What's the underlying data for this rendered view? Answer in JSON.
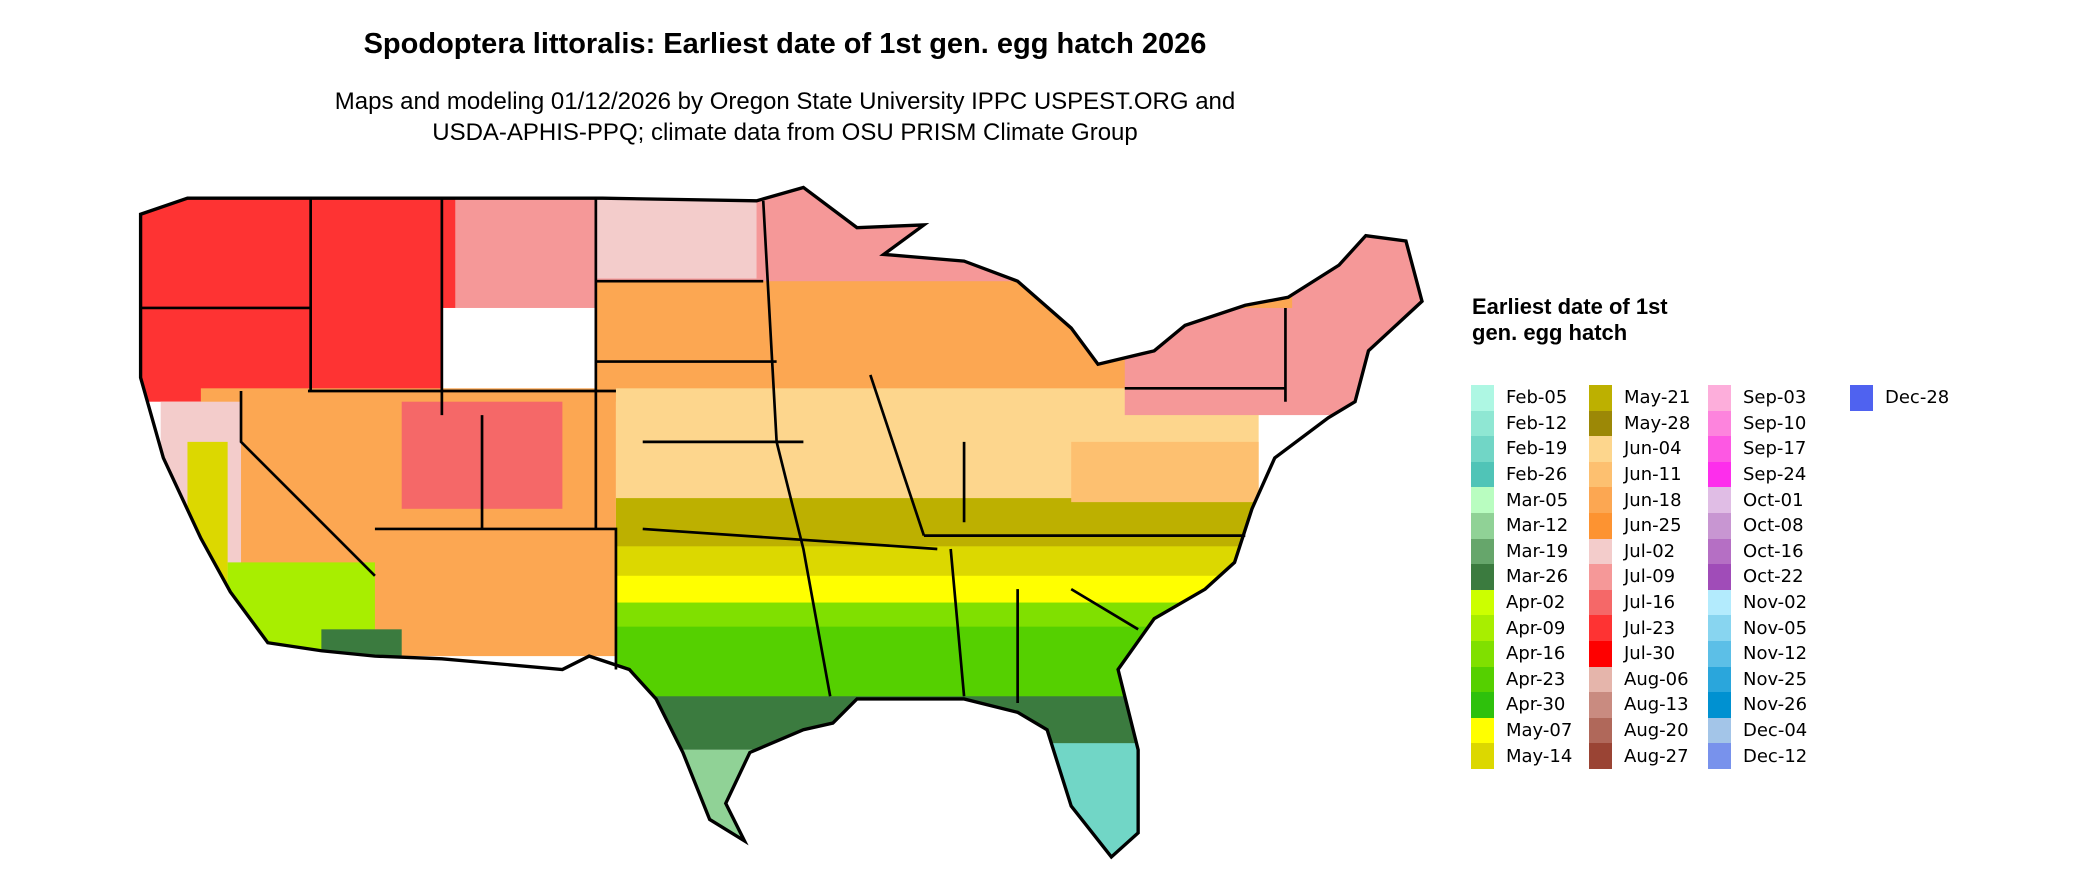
{
  "chart_data": {
    "type": "heatmap",
    "title": "Spodoptera littoralis: Earliest date of 1st gen. egg hatch 2026",
    "subtitle_lines": [
      "Maps and modeling 01/12/2026 by Oregon State University IPPC USPEST.ORG and",
      "USDA-APHIS-PPQ; climate data from OSU PRISM Climate Group"
    ],
    "legend_title": "Earliest date of 1st gen. egg hatch",
    "legend_placement": "right",
    "legend_columns": [
      [
        {
          "label": "Feb-05",
          "color": "#aef7e3"
        },
        {
          "label": "Feb-12",
          "color": "#8fe7d3"
        },
        {
          "label": "Feb-19",
          "color": "#71d6c6"
        },
        {
          "label": "Feb-26",
          "color": "#50c4b7"
        },
        {
          "label": "Mar-05",
          "color": "#b9fdc0"
        },
        {
          "label": "Mar-12",
          "color": "#90d296"
        },
        {
          "label": "Mar-19",
          "color": "#66a66b"
        },
        {
          "label": "Mar-26",
          "color": "#3b7b3f"
        },
        {
          "label": "Apr-02",
          "color": "#ccff00"
        },
        {
          "label": "Apr-09",
          "color": "#a8ee00"
        },
        {
          "label": "Apr-16",
          "color": "#80e000"
        },
        {
          "label": "Apr-23",
          "color": "#55d000"
        },
        {
          "label": "Apr-30",
          "color": "#2ec10c"
        },
        {
          "label": "May-07",
          "color": "#ffff00"
        },
        {
          "label": "May-14",
          "color": "#dcd800"
        }
      ],
      [
        {
          "label": "May-21",
          "color": "#bdb000"
        },
        {
          "label": "May-28",
          "color": "#9c8806"
        },
        {
          "label": "Jun-04",
          "color": "#fdd68d"
        },
        {
          "label": "Jun-11",
          "color": "#fdc070"
        },
        {
          "label": "Jun-18",
          "color": "#fca752"
        },
        {
          "label": "Jun-25",
          "color": "#fd9331"
        },
        {
          "label": "Jul-02",
          "color": "#f3cccb"
        },
        {
          "label": "Jul-09",
          "color": "#f59898"
        },
        {
          "label": "Jul-16",
          "color": "#f56868"
        },
        {
          "label": "Jul-23",
          "color": "#fe3333"
        },
        {
          "label": "Jul-30",
          "color": "#fe0000"
        },
        {
          "label": "Aug-06",
          "color": "#e5b5ab"
        },
        {
          "label": "Aug-13",
          "color": "#c98b80"
        },
        {
          "label": "Aug-20",
          "color": "#b0685a"
        },
        {
          "label": "Aug-27",
          "color": "#9a4434"
        }
      ],
      [
        {
          "label": "Sep-03",
          "color": "#fdaedb"
        },
        {
          "label": "Sep-10",
          "color": "#fd84dd"
        },
        {
          "label": "Sep-17",
          "color": "#fd58e3"
        },
        {
          "label": "Sep-24",
          "color": "#fd2eec"
        },
        {
          "label": "Oct-01",
          "color": "#e0bde5"
        },
        {
          "label": "Oct-08",
          "color": "#c896d2"
        },
        {
          "label": "Oct-16",
          "color": "#b56fc4"
        },
        {
          "label": "Oct-22",
          "color": "#a04cb8"
        },
        {
          "label": "Nov-02",
          "color": "#b3ebfd"
        },
        {
          "label": "Nov-05",
          "color": "#88d5f0"
        },
        {
          "label": "Nov-12",
          "color": "#5cbfe7"
        },
        {
          "label": "Nov-25",
          "color": "#2aa6dc"
        },
        {
          "label": "Nov-26",
          "color": "#0091d1"
        },
        {
          "label": "Dec-04",
          "color": "#a3c5e8"
        },
        {
          "label": "Dec-12",
          "color": "#7892ec"
        }
      ],
      [
        {
          "label": "Dec-28",
          "color": "#4f62f0"
        }
      ]
    ]
  }
}
